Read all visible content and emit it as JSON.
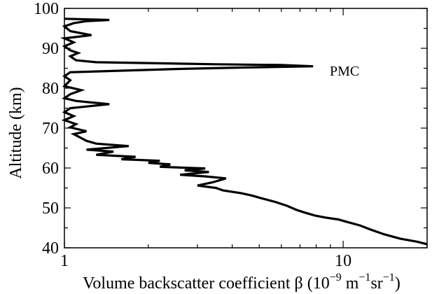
{
  "chart_data": {
    "type": "line",
    "xlabel": "Volume backscatter coefficient β (10",
    "xlabel_parts": [
      "−9",
      " m",
      "−1",
      "sr",
      "−1",
      ")"
    ],
    "ylabel": "Altitude (km)",
    "x_scale": "log",
    "xlim": [
      1,
      20
    ],
    "ylim": [
      40,
      100
    ],
    "x_tick_labels": [
      "1",
      "10"
    ],
    "y_tick_labels": [
      "40",
      "50",
      "60",
      "70",
      "80",
      "90",
      "100"
    ],
    "annotation": {
      "text": "PMC",
      "x": 10.2,
      "y": 85
    },
    "series": [
      {
        "line_color": "#000000",
        "points": [
          [
            20,
            40.9
          ],
          [
            18.5,
            41.5
          ],
          [
            16,
            42.3
          ],
          [
            14,
            43.4
          ],
          [
            12.5,
            44.6
          ],
          [
            11.5,
            45.6
          ],
          [
            10.3,
            46.5
          ],
          [
            9.6,
            47.1
          ],
          [
            8.6,
            47.6
          ],
          [
            7.9,
            48.1
          ],
          [
            7.3,
            48.8
          ],
          [
            6.8,
            49.5
          ],
          [
            6.3,
            50.5
          ],
          [
            5.7,
            51.5
          ],
          [
            5.1,
            52.4
          ],
          [
            4.7,
            53.1
          ],
          [
            4.3,
            53.7
          ],
          [
            3.7,
            54.4
          ],
          [
            3.5,
            55.0
          ],
          [
            3.0,
            55.6
          ],
          [
            3.4,
            56.4
          ],
          [
            3.8,
            57.4
          ],
          [
            3.2,
            57.9
          ],
          [
            2.6,
            58.3
          ],
          [
            3.3,
            59.0
          ],
          [
            2.7,
            59.4
          ],
          [
            3.2,
            59.9
          ],
          [
            2.2,
            60.3
          ],
          [
            2.4,
            60.9
          ],
          [
            2.0,
            61.3
          ],
          [
            2.2,
            61.8
          ],
          [
            1.6,
            62.2
          ],
          [
            1.8,
            62.8
          ],
          [
            1.3,
            63.3
          ],
          [
            1.5,
            64.1
          ],
          [
            1.2,
            64.6
          ],
          [
            1.7,
            65.5
          ],
          [
            1.3,
            66.1
          ],
          [
            1.2,
            66.8
          ],
          [
            1.15,
            67.5
          ],
          [
            1.08,
            68.5
          ],
          [
            1.2,
            69.2
          ],
          [
            1.05,
            70.2
          ],
          [
            1.1,
            71.0
          ],
          [
            1.0,
            72.0
          ],
          [
            1.08,
            73.0
          ],
          [
            1.0,
            74.0
          ],
          [
            1.05,
            75.0
          ],
          [
            1.45,
            76.0
          ],
          [
            1.1,
            76.8
          ],
          [
            1.0,
            77.5
          ],
          [
            1.05,
            78.5
          ],
          [
            1.15,
            79.5
          ],
          [
            1.0,
            80.5
          ],
          [
            1.05,
            82.0
          ],
          [
            1.0,
            83.0
          ],
          [
            1.05,
            84.0
          ],
          [
            2.5,
            84.8
          ],
          [
            4.5,
            85.2
          ],
          [
            7.8,
            85.5
          ],
          [
            6.0,
            85.8
          ],
          [
            3.5,
            86.0
          ],
          [
            2.0,
            86.3
          ],
          [
            1.3,
            86.5
          ],
          [
            1.1,
            87.0
          ],
          [
            1.05,
            88.0
          ],
          [
            1.12,
            88.8
          ],
          [
            1.05,
            89.5
          ],
          [
            1.0,
            90.5
          ],
          [
            1.08,
            91.5
          ],
          [
            1.0,
            92.5
          ],
          [
            1.25,
            93.3
          ],
          [
            1.05,
            94.3
          ],
          [
            1.0,
            95.5
          ],
          [
            1.08,
            96.3
          ],
          [
            1.2,
            96.8
          ],
          [
            1.45,
            97.1
          ],
          [
            1.0,
            97.4
          ]
        ]
      }
    ]
  }
}
